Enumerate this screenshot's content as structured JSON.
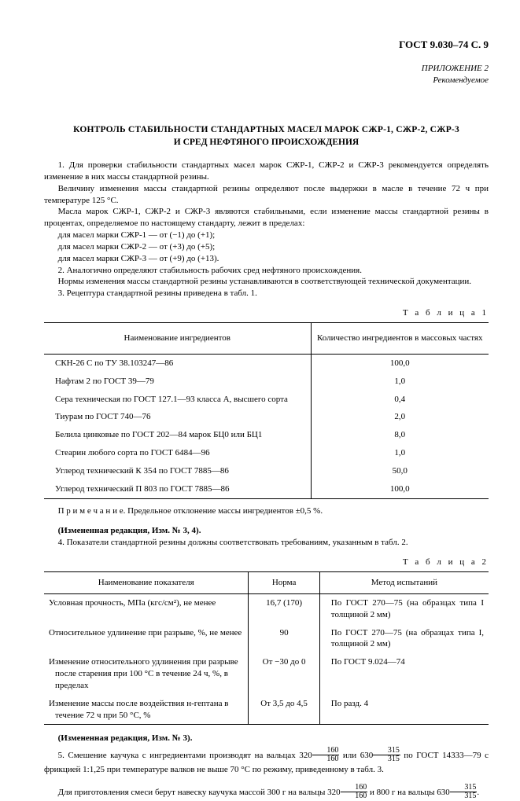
{
  "header": "ГОСТ 9.030–74 С. 9",
  "appendix": {
    "line1": "ПРИЛОЖЕНИЕ 2",
    "line2": "Рекомендуемое"
  },
  "title": {
    "line1": "КОНТРОЛЬ СТАБИЛЬНОСТИ СТАНДАРТНЫХ МАСЕЛ МАРОК СЖР-1, СЖР-2, СЖР-3",
    "line2": "И СРЕД НЕФТЯНОГО ПРОИСХОЖДЕНИЯ"
  },
  "body": {
    "p1": "1. Для проверки стабильности стандартных масел марок СЖР-1, СЖР-2 и СЖР-3 рекомендуется определять изменение в них массы стандартной резины.",
    "p2": "Величину изменения массы стандартной резины определяют после выдержки в масле в течение 72 ч при температуре 125 °С.",
    "p3": "Масла марок СЖР-1, СЖР-2 и СЖР-3 являются стабильными, если изменение массы стандартной резины в процентах, определяемое по настоящему стандарту, лежит в пределах:",
    "l1": "для масел марки СЖР-1 — от (−1) до (+1);",
    "l2": "для масел марки СЖР-2 — от (+3) до (+5);",
    "l3": "для масел марки СЖР-3 — от (+9) до (+13).",
    "p4": "2. Аналогично определяют стабильность рабочих сред нефтяного происхождения.",
    "p5": "Нормы изменения массы стандартной резины устанавливаются в соответствующей технической документации.",
    "p6": "3. Рецептура стандартной резины приведена в табл. 1."
  },
  "table1": {
    "caption": "Т а б л и ц а  1",
    "head": {
      "c1": "Наименование ингредиентов",
      "c2": "Количество ингредиентов в массовых частях"
    },
    "rows": [
      {
        "n": "СКН-26 С по ТУ 38.103247—86",
        "v": "100,0"
      },
      {
        "n": "Нафтам 2 по ГОСТ 39—79",
        "v": "1,0"
      },
      {
        "n": "Сера техническая по ГОСТ 127.1—93 класса А, высшего сорта",
        "v": "0,4"
      },
      {
        "n": "Тиурам по ГОСТ 740—76",
        "v": "2,0"
      },
      {
        "n": "Белила цинковые по ГОСТ 202—84 марок БЦ0 или БЦ1",
        "v": "8,0"
      },
      {
        "n": "Стеарин любого сорта по ГОСТ 6484—96",
        "v": "1,0"
      },
      {
        "n": "Углерод технический К 354 по ГОСТ 7885—86",
        "v": "50,0"
      },
      {
        "n": "Углерод технический П 803 по ГОСТ 7885—86",
        "v": "100,0"
      }
    ]
  },
  "note1": "П р и м е ч а н и е.  Предельное отклонение массы ингредиентов ±0,5 %.",
  "change1": "(Измененная редакция, Изм. № 3, 4).",
  "p7": "4.   Показатели стандартной резины должны соответствовать требованиям, указанным в табл. 2.",
  "table2": {
    "caption": "Т а б л и ц а  2",
    "head": {
      "c1": "Наименование показателя",
      "c2": "Норма",
      "c3": "Метод испытаний"
    },
    "rows": [
      {
        "n": "Условная прочность, МПа (кгс/см²), не менее",
        "norm": "16,7 (170)",
        "m": "По ГОСТ 270—75 (на образцах типа I толщиной 2 мм)"
      },
      {
        "n": "Относительное удлинение при разрыве, %, не менее",
        "norm": "90",
        "m": "По ГОСТ 270—75 (на образцах типа I, толщиной 2 мм)"
      },
      {
        "n": "Изменение относительного удлинения при разрыве после старения при 100 °С в течение 24 ч, %, в пределах",
        "norm": "От −30 до 0",
        "m": "По ГОСТ 9.024—74"
      },
      {
        "n": "Изменение массы после воздействия н-гептана в течение 72 ч при 50 °С, %",
        "norm": "От 3,5 до 4,5",
        "m": "По разд. 4"
      }
    ]
  },
  "change2": "(Измененная редакция, Изм. № 3).",
  "p8a": "5. Смешение каучука с ингредиентами производят на вальцах 320",
  "p8b": " или 630",
  "p8c": " по ГОСТ 14333—79 с фрикцией 1:1,25 при температуре валков не выше 70 °С по режиму, приведенному в табл. 3.",
  "p9a": "Для приготовления смеси берут навеску каучука массой 300 г на вальцы 320",
  "p9b": " и 800 г на вальцы 630",
  "p9c": ".",
  "fracs": {
    "a_num": "160",
    "a_den": "160",
    "b_num": "315",
    "b_den": "315",
    "c_num": "160",
    "c_den": "160",
    "d_num": "315",
    "d_den": "315"
  }
}
